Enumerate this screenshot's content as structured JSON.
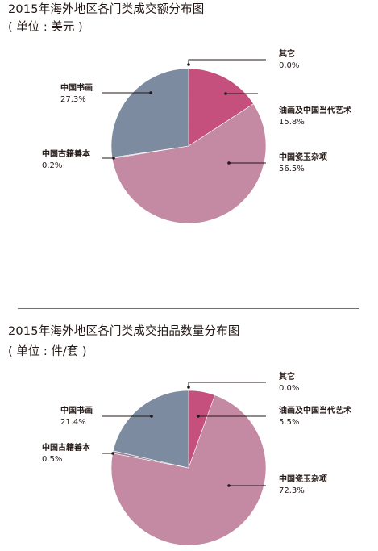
{
  "chart_data": [
    {
      "type": "pie",
      "title": "2015年海外地区各门类成交额分布图",
      "subtitle": "( 单位 : 美元 )",
      "slices": [
        {
          "name": "油画及中国当代艺术",
          "value": 15.8,
          "label": "15.8%",
          "color": "#c5507e"
        },
        {
          "name": "中国瓷玉杂项",
          "value": 56.5,
          "label": "56.5%",
          "color": "#c48aa3"
        },
        {
          "name": "中国古籍善本",
          "value": 0.2,
          "label": "0.2%",
          "color": "#9b8496"
        },
        {
          "name": "中国书画",
          "value": 27.3,
          "label": "27.3%",
          "color": "#7c8ba0"
        },
        {
          "name": "其它",
          "value": 0.0,
          "label": "0.0%",
          "color": "#c5507e"
        }
      ]
    },
    {
      "type": "pie",
      "title": "2015年海外地区各门类成交拍品数量分布图",
      "subtitle": "( 单位 : 件/套 )",
      "slices": [
        {
          "name": "油画及中国当代艺术",
          "value": 5.5,
          "label": "5.5%",
          "color": "#c5507e"
        },
        {
          "name": "中国瓷玉杂项",
          "value": 72.3,
          "label": "72.3%",
          "color": "#c48aa3"
        },
        {
          "name": "中国古籍善本",
          "value": 0.5,
          "label": "0.5%",
          "color": "#9b8496"
        },
        {
          "name": "中国书画",
          "value": 21.4,
          "label": "21.4%",
          "color": "#7c8ba0"
        },
        {
          "name": "其它",
          "value": 0.0,
          "label": "0.0%",
          "color": "#c5507e"
        }
      ]
    }
  ]
}
